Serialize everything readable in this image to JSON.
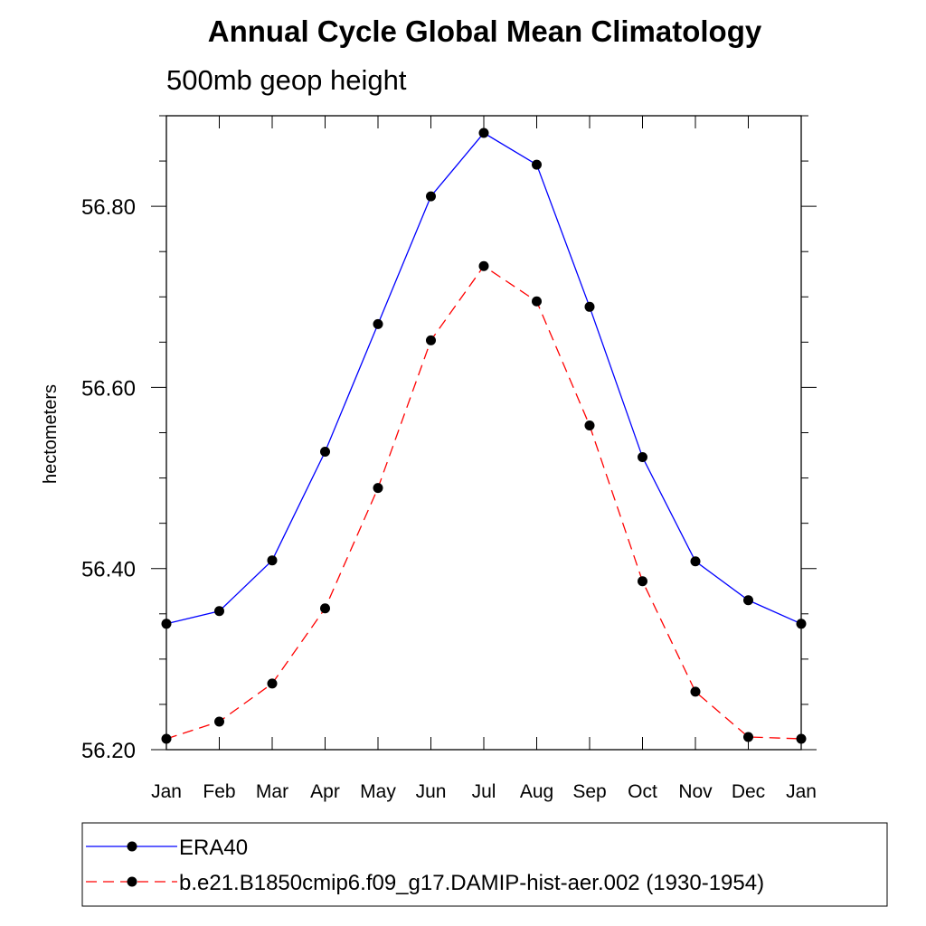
{
  "chart_data": {
    "type": "line",
    "title": "Annual Cycle Global Mean Climatology",
    "subtitle": "500mb geop height",
    "ylabel": "hectometers",
    "xlabel": "",
    "categories": [
      "Jan",
      "Feb",
      "Mar",
      "Apr",
      "May",
      "Jun",
      "Jul",
      "Aug",
      "Sep",
      "Oct",
      "Nov",
      "Dec",
      "Jan"
    ],
    "ylim": [
      56.2,
      56.9
    ],
    "yticks": [
      56.2,
      56.4,
      56.6,
      56.8
    ],
    "ytick_labels": [
      "56.20",
      "56.40",
      "56.60",
      "56.80"
    ],
    "series": [
      {
        "name": "ERA40",
        "color": "#0000ff",
        "dash": "solid",
        "values": [
          56.339,
          56.353,
          56.409,
          56.529,
          56.67,
          56.811,
          56.881,
          56.846,
          56.689,
          56.523,
          56.408,
          56.365,
          56.339
        ]
      },
      {
        "name": "b.e21.B1850cmip6.f09_g17.DAMIP-hist-aer.002 (1930-1954)",
        "color": "#ff0000",
        "dash": "dashed",
        "values": [
          56.212,
          56.231,
          56.273,
          56.356,
          56.489,
          56.652,
          56.734,
          56.695,
          56.558,
          56.386,
          56.264,
          56.214,
          56.212
        ]
      }
    ],
    "legend_position": "bottom"
  }
}
